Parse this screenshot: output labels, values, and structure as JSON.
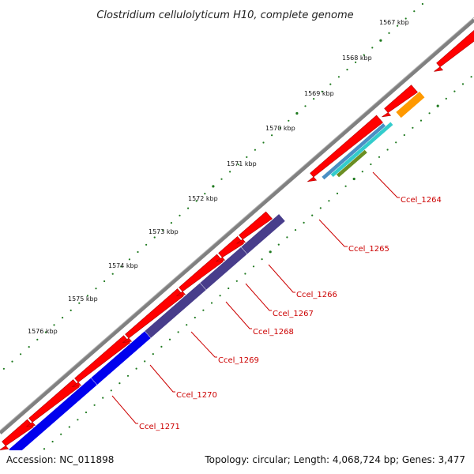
{
  "title": "Clostridium cellulolyticum H10, complete genome",
  "footer": {
    "accession": "Accession: NC_011898",
    "summary": "Topology: circular; Length: 4,068,724 bp; Genes: 3,477"
  },
  "ticks": [
    "1567 kbp",
    "1568 kbp",
    "1569 kbp",
    "1570 kbp",
    "1571 kbp",
    "1572 kbp",
    "1573 kbp",
    "1574 kbp",
    "1575 kbp",
    "1576 kbp"
  ],
  "genes": [
    {
      "label": "Ccel_1264",
      "cds_color": "#ff0000",
      "feature_colors": [
        "#ff9900",
        "#33cccc",
        "#4a8fc4"
      ]
    },
    {
      "label": "Ccel_1265",
      "cds_color": "#ff0000",
      "feature_colors": [
        "#6b8e23"
      ]
    },
    {
      "label": "Ccel_1266",
      "cds_color": "#ff0000",
      "feature_colors": [
        "#483d8b"
      ]
    },
    {
      "label": "Ccel_1267",
      "cds_color": "#ff0000",
      "feature_colors": [
        "#483d8b"
      ]
    },
    {
      "label": "Ccel_1268",
      "cds_color": "#ff0000",
      "feature_colors": [
        "#483d8b"
      ]
    },
    {
      "label": "Ccel_1269",
      "cds_color": "#ff0000",
      "feature_colors": [
        "#483d8b"
      ]
    },
    {
      "label": "Ccel_1270",
      "cds_color": "#ff0000",
      "feature_colors": [
        "#0000ee"
      ]
    },
    {
      "label": "Ccel_1271",
      "cds_color": "#ff0000",
      "feature_colors": [
        "#0000ee"
      ]
    }
  ],
  "colors": {
    "backbone": "#808080",
    "tick_mark": "#1f7a1f",
    "gene_label": "#cc0000"
  }
}
